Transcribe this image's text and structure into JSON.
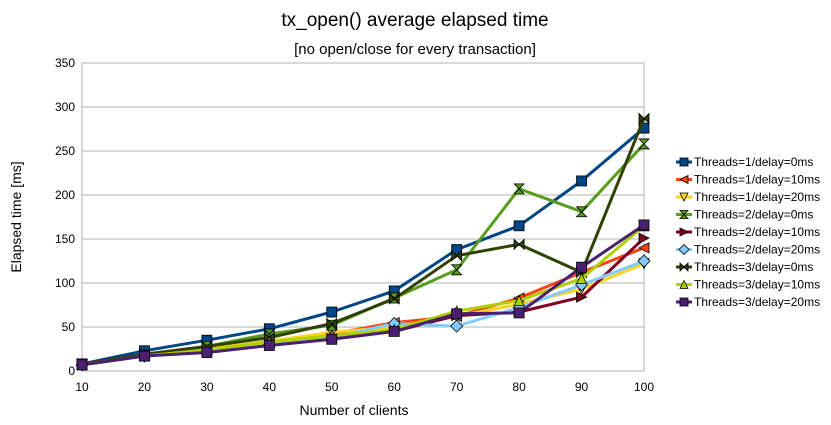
{
  "chart_data": {
    "type": "line",
    "title": "tx_open() average elapsed time",
    "subtitle": "[no open/close for every transaction]",
    "xlabel": "Number of clients",
    "ylabel": "Elapsed time [ms]",
    "x": [
      10,
      20,
      30,
      40,
      50,
      60,
      70,
      80,
      90,
      100
    ],
    "xticks": [
      "10",
      "20",
      "30",
      "40",
      "50",
      "60",
      "70",
      "80",
      "90",
      "100"
    ],
    "ylim": [
      0,
      350
    ],
    "yticks": [
      "0",
      "50",
      "100",
      "150",
      "200",
      "250",
      "300",
      "350"
    ],
    "grid": true,
    "legend_position": "right",
    "series": [
      {
        "name": "Threads=1/delay=0ms",
        "color": "#004586",
        "marker": "square",
        "values": [
          8,
          23,
          35,
          48,
          67,
          91,
          138,
          165,
          216,
          276
        ]
      },
      {
        "name": "Threads=1/delay=10ms",
        "color": "#ff420e",
        "marker": "triangle-left",
        "values": [
          7,
          17,
          25,
          32,
          42,
          55,
          62,
          83,
          112,
          140
        ]
      },
      {
        "name": "Threads=1/delay=20ms",
        "color": "#ffd320",
        "marker": "triangle-down",
        "values": [
          7,
          17,
          25,
          34,
          44,
          50,
          62,
          76,
          93,
          122
        ]
      },
      {
        "name": "Threads=2/delay=0ms",
        "color": "#579d1c",
        "marker": "hourglass",
        "values": [
          8,
          18,
          28,
          42,
          52,
          83,
          115,
          207,
          181,
          258
        ]
      },
      {
        "name": "Threads=2/delay=10ms",
        "color": "#7e0021",
        "marker": "triangle-right",
        "values": [
          7,
          17,
          23,
          30,
          37,
          45,
          63,
          67,
          84,
          151
        ]
      },
      {
        "name": "Threads=2/delay=20ms",
        "color": "#83caff",
        "marker": "diamond",
        "values": [
          7,
          17,
          22,
          30,
          38,
          54,
          51,
          72,
          98,
          125
        ]
      },
      {
        "name": "Threads=3/delay=0ms",
        "color": "#314004",
        "marker": "bowtie",
        "values": [
          8,
          19,
          28,
          38,
          54,
          82,
          131,
          144,
          112,
          287
        ]
      },
      {
        "name": "Threads=3/delay=10ms",
        "color": "#aecf00",
        "marker": "triangle-up",
        "values": [
          7,
          17,
          24,
          33,
          40,
          47,
          68,
          80,
          105,
          165
        ]
      },
      {
        "name": "Threads=3/delay=20ms",
        "color": "#4b1f6f",
        "marker": "square",
        "values": [
          7,
          17,
          21,
          29,
          36,
          45,
          65,
          66,
          118,
          166
        ]
      }
    ]
  }
}
